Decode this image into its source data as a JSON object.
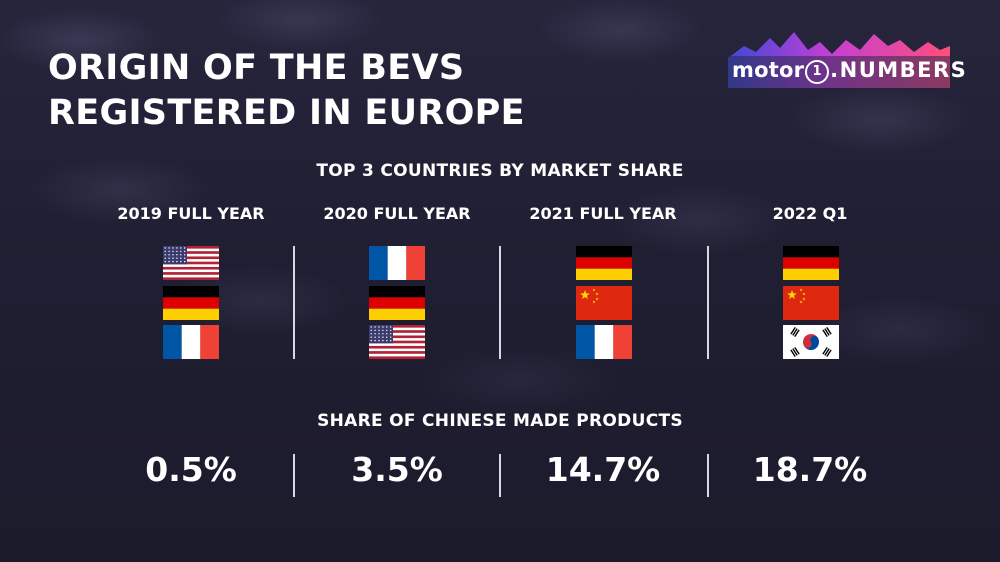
{
  "title": {
    "line1": "ORIGIN OF THE BEVS",
    "line2": "REGISTERED IN EUROPE"
  },
  "brand": {
    "logo_text_a": "motor",
    "logo_text_one": "1",
    "logo_text_b": ".NUMBERS"
  },
  "top3": {
    "heading": "TOP 3 COUNTRIES BY MARKET SHARE",
    "columns": [
      {
        "label": "2019 FULL YEAR",
        "flags": [
          "usa-flag",
          "germany-flag",
          "france-flag"
        ]
      },
      {
        "label": "2020 FULL YEAR",
        "flags": [
          "france-flag",
          "germany-flag",
          "usa-flag"
        ]
      },
      {
        "label": "2021 FULL YEAR",
        "flags": [
          "germany-flag",
          "china-flag",
          "france-flag"
        ]
      },
      {
        "label": "2022 Q1",
        "flags": [
          "germany-flag",
          "china-flag",
          "south-korea-flag"
        ]
      }
    ]
  },
  "chinese_share": {
    "heading": "SHARE OF CHINESE MADE PRODUCTS",
    "values": [
      "0.5%",
      "3.5%",
      "14.7%",
      "18.7%"
    ]
  },
  "colors": {
    "background": "#201f33",
    "text": "#ffffff",
    "divider": "#d8d8e4"
  }
}
